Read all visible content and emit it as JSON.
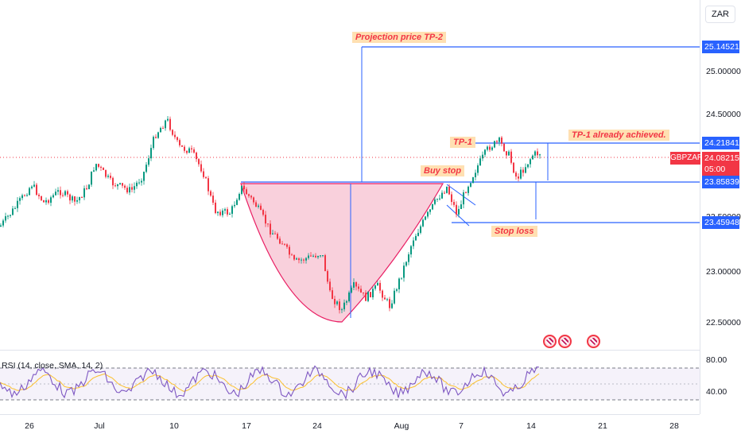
{
  "symbol": "GBPZAR",
  "currency_button": "ZAR",
  "price_axis": {
    "ticks": [
      "25.00000",
      "24.50000",
      "23.00000",
      "22.50000"
    ],
    "partial_tick": "23.50000"
  },
  "price_tags": {
    "tp2": "25.14521",
    "tp1": "24.21841",
    "current": "24.08215",
    "countdown": "05:00",
    "buy_stop": "23.85839",
    "stop_loss": "23.45948"
  },
  "rsi": {
    "legend": "RSI (14, close, SMA, 14, 2)",
    "ticks": [
      "80.00",
      "40.00"
    ]
  },
  "time_axis": [
    "26",
    "Jul",
    "10",
    "17",
    "24",
    "Aug",
    "7",
    "14",
    "21",
    "28"
  ],
  "annotations": {
    "projection": "Projection price TP-2",
    "tp1_label": "TP-1",
    "tp1_note": "TP-1 already achieved.",
    "buy_stop": "Buy stop",
    "stop_loss": "Stop loss"
  },
  "colors": {
    "up": "#089981",
    "down": "#f23645",
    "level": "#2962ff",
    "cup_fill": "#f8c8d6",
    "rsi_line": "#7e57c2",
    "rsi_ma": "#fbc02d"
  },
  "event_icons": [
    "uk-flag-icon",
    "uk-flag-icon",
    "uk-flag-icon"
  ]
}
